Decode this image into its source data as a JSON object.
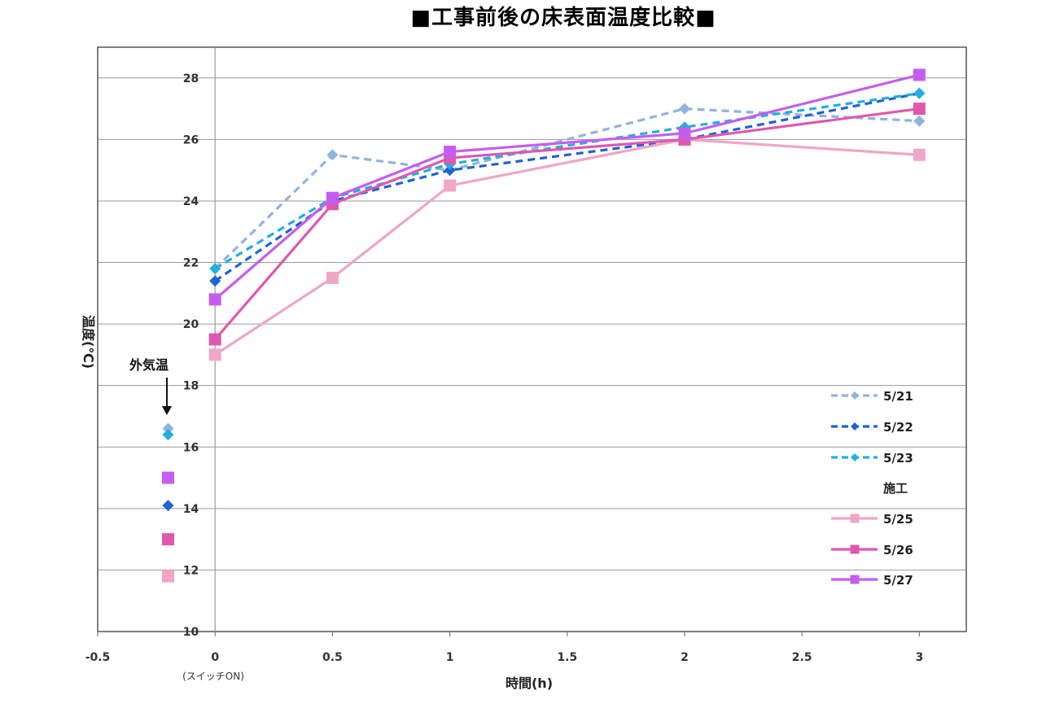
{
  "chart_data": {
    "type": "line",
    "title": "■工事前後の床表面温度比較■",
    "xlabel": "時間(h)",
    "ylabel": "温度(℃)",
    "x_note": "(スイッチON)",
    "xlim": [
      -0.5,
      3.2
    ],
    "ylim": [
      10,
      29
    ],
    "x_ticks": [
      "-0.5",
      "0",
      "0.5",
      "1",
      "1.5",
      "2",
      "2.5",
      "3"
    ],
    "x_tick_values": [
      -0.5,
      0,
      0.5,
      1,
      1.5,
      2,
      2.5,
      3
    ],
    "y_ticks": [
      "10",
      "12",
      "14",
      "16",
      "18",
      "20",
      "22",
      "24",
      "26",
      "28"
    ],
    "y_tick_values": [
      10,
      12,
      14,
      16,
      18,
      20,
      22,
      24,
      26,
      28
    ],
    "grid": true,
    "legend_position": "bottom-right",
    "legend_group_label": "施工",
    "outdoor_label": "外気温",
    "x": [
      0,
      0.5,
      1,
      2,
      3
    ],
    "outdoor_x": -0.2,
    "series": [
      {
        "name": "5/21",
        "values": [
          21.8,
          25.5,
          25.0,
          27.0,
          26.6
        ],
        "outdoor": 16.6,
        "color": "#8fb4de",
        "marker": "diamond",
        "dash": true
      },
      {
        "name": "5/22",
        "values": [
          21.4,
          24.0,
          25.0,
          26.0,
          27.5
        ],
        "outdoor": 14.1,
        "color": "#1e64d2",
        "marker": "diamond",
        "dash": true
      },
      {
        "name": "5/23",
        "values": [
          21.8,
          24.1,
          25.2,
          26.4,
          27.5
        ],
        "outdoor": 16.4,
        "color": "#22aee0",
        "marker": "diamond",
        "dash": true
      },
      {
        "name": "5/25",
        "values": [
          19.0,
          21.5,
          24.5,
          26.0,
          25.5
        ],
        "outdoor": 11.8,
        "color": "#f0a6c6",
        "marker": "square",
        "dash": false
      },
      {
        "name": "5/26",
        "values": [
          19.5,
          23.9,
          25.4,
          26.0,
          27.0
        ],
        "outdoor": 13.0,
        "color": "#de58b0",
        "marker": "square",
        "dash": false
      },
      {
        "name": "5/27",
        "values": [
          20.8,
          24.1,
          25.6,
          26.2,
          28.1
        ],
        "outdoor": 15.0,
        "color": "#c45ef0",
        "marker": "square",
        "dash": false
      }
    ]
  }
}
